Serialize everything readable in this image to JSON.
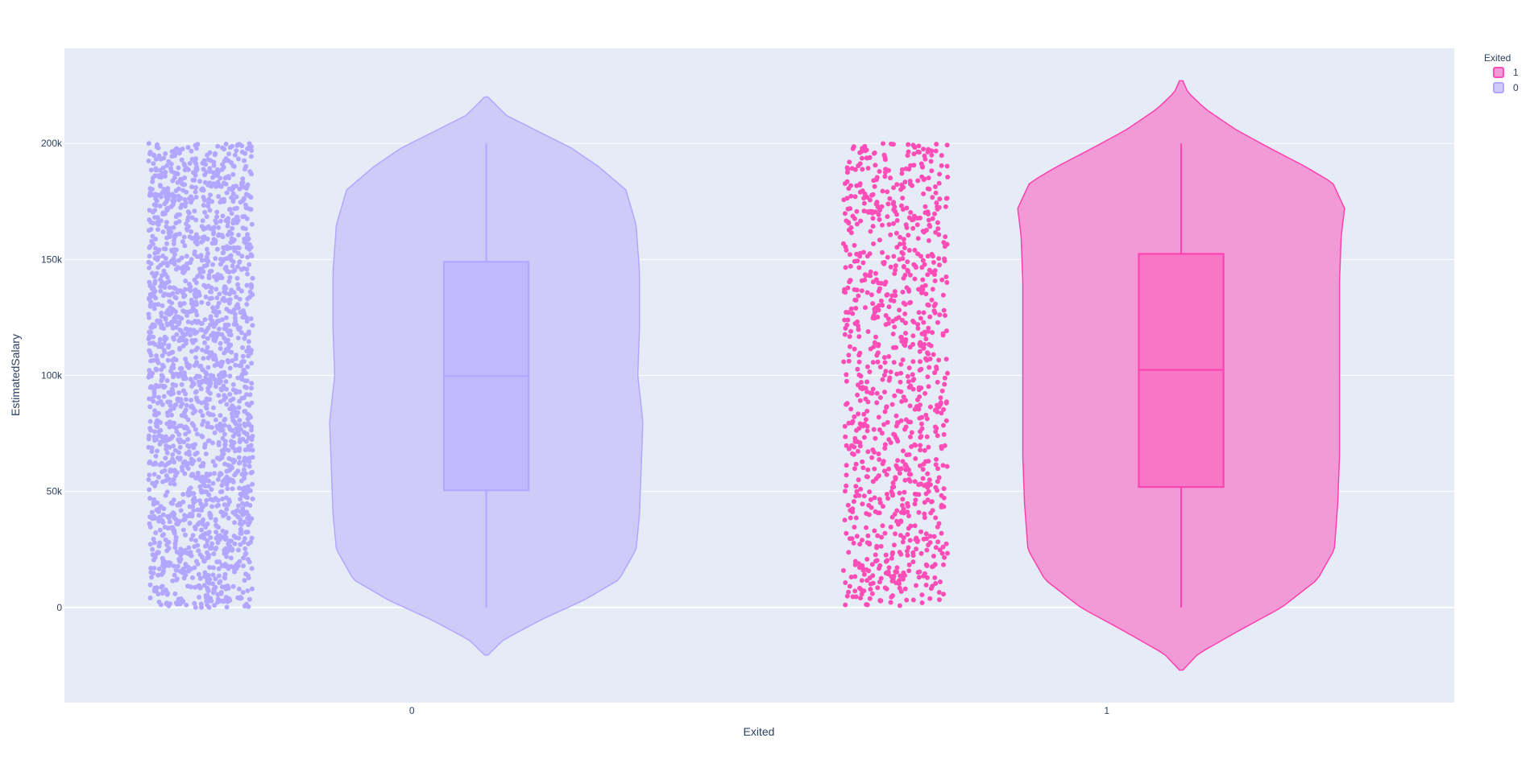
{
  "chart_data": {
    "type": "violin",
    "xlabel": "Exited",
    "ylabel": "EstimatedSalary",
    "categories": [
      "0",
      "1"
    ],
    "ylim": [
      -41000,
      241000
    ],
    "y_ticks": [
      {
        "value": 0,
        "label": "0"
      },
      {
        "value": 50000,
        "label": "50k"
      },
      {
        "value": 100000,
        "label": "100k"
      },
      {
        "value": 150000,
        "label": "150k"
      },
      {
        "value": 200000,
        "label": "200k"
      }
    ],
    "grid": true,
    "points_shown": "all",
    "legend": {
      "title": "Exited",
      "placement": "top-right",
      "entries": [
        {
          "label": "1",
          "color": "#ff4db8"
        },
        {
          "label": "0",
          "color": "#b3a6ff"
        }
      ]
    },
    "series": [
      {
        "name": "0",
        "category": "0",
        "color": "#b3a6ff",
        "line_color": "#b3a6ff",
        "fill_color": "#cfcbf9",
        "box_fill": "#c0b9fb",
        "stats": {
          "min": 0,
          "q1": 50500,
          "median": 99700,
          "q3": 149000,
          "max": 200000
        },
        "violin_extent": [
          -20500,
          220000
        ],
        "density_profile": [
          [
            -20500,
            0.01
          ],
          [
            -14000,
            0.1
          ],
          [
            -5000,
            0.33
          ],
          [
            3000,
            0.57
          ],
          [
            12000,
            0.78
          ],
          [
            25000,
            0.88
          ],
          [
            40000,
            0.9
          ],
          [
            60000,
            0.91
          ],
          [
            80000,
            0.92
          ],
          [
            100000,
            0.89
          ],
          [
            120000,
            0.9
          ],
          [
            145000,
            0.9
          ],
          [
            165000,
            0.88
          ],
          [
            180000,
            0.82
          ],
          [
            190000,
            0.66
          ],
          [
            198000,
            0.5
          ],
          [
            205000,
            0.31
          ],
          [
            212000,
            0.12
          ],
          [
            220000,
            0.01
          ]
        ],
        "point_count": 2000
      },
      {
        "name": "1",
        "category": "1",
        "color": "#ff4db8",
        "line_color": "#ff3fb0",
        "fill_color": "#f19ad5",
        "box_fill": "#f776c6",
        "stats": {
          "min": 0,
          "q1": 51900,
          "median": 102400,
          "q3": 152400,
          "max": 200000
        },
        "violin_extent": [
          -27000,
          227000
        ],
        "density_profile": [
          [
            -27000,
            0.01
          ],
          [
            -20000,
            0.1
          ],
          [
            -10000,
            0.34
          ],
          [
            0,
            0.59
          ],
          [
            12000,
            0.8
          ],
          [
            25000,
            0.9
          ],
          [
            45000,
            0.92
          ],
          [
            65000,
            0.93
          ],
          [
            90000,
            0.93
          ],
          [
            115000,
            0.93
          ],
          [
            140000,
            0.93
          ],
          [
            160000,
            0.94
          ],
          [
            172000,
            0.96
          ],
          [
            183000,
            0.89
          ],
          [
            190000,
            0.73
          ],
          [
            198000,
            0.52
          ],
          [
            206000,
            0.32
          ],
          [
            215000,
            0.14
          ],
          [
            222000,
            0.04
          ],
          [
            227000,
            0.01
          ]
        ],
        "point_count": 1000
      }
    ]
  }
}
